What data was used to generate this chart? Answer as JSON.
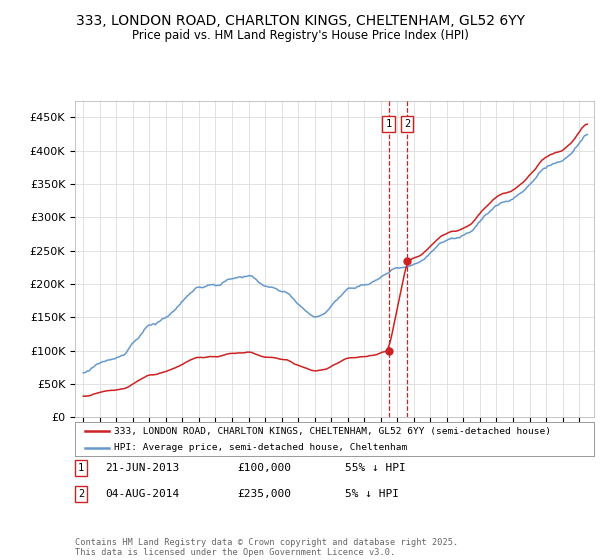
{
  "title": "333, LONDON ROAD, CHARLTON KINGS, CHELTENHAM, GL52 6YY",
  "subtitle": "Price paid vs. HM Land Registry's House Price Index (HPI)",
  "ylim": [
    0,
    475000
  ],
  "yticks": [
    0,
    50000,
    100000,
    150000,
    200000,
    250000,
    300000,
    350000,
    400000,
    450000
  ],
  "ytick_labels": [
    "£0",
    "£50K",
    "£100K",
    "£150K",
    "£200K",
    "£250K",
    "£300K",
    "£350K",
    "£400K",
    "£450K"
  ],
  "hpi_color": "#6699cc",
  "price_color": "#cc2222",
  "vline_color": "#cc2222",
  "legend1": "333, LONDON ROAD, CHARLTON KINGS, CHELTENHAM, GL52 6YY (semi-detached house)",
  "legend2": "HPI: Average price, semi-detached house, Cheltenham",
  "purchase1_date": "21-JUN-2013",
  "purchase1_price": 100000,
  "purchase1_year": 2013.47,
  "purchase2_date": "04-AUG-2014",
  "purchase2_price": 235000,
  "purchase2_year": 2014.59,
  "purchase1_label": "£100,000",
  "purchase1_pct": "55% ↓ HPI",
  "purchase2_label": "£235,000",
  "purchase2_pct": "5% ↓ HPI",
  "footer": "Contains HM Land Registry data © Crown copyright and database right 2025.\nThis data is licensed under the Open Government Licence v3.0.",
  "background_color": "#ffffff",
  "grid_color": "#dddddd",
  "xlim_left": 1994.5,
  "xlim_right": 2025.9
}
